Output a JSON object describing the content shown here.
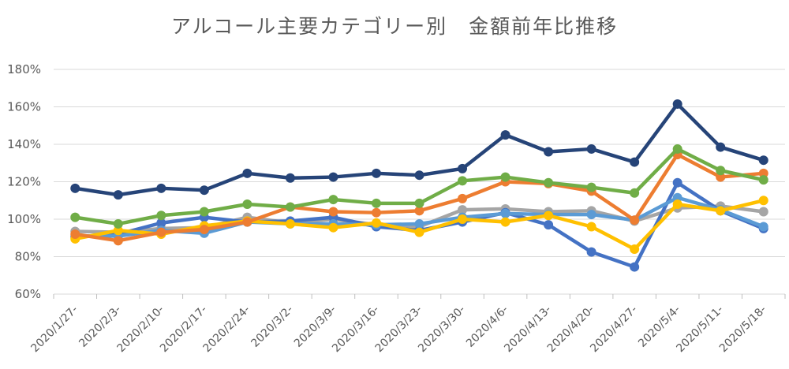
{
  "chart_data": {
    "type": "line",
    "title": "アルコール主要カテゴリー別　金額前年比推移",
    "xlabel": "",
    "ylabel": "",
    "ylim": [
      60,
      180
    ],
    "yticks": [
      60,
      80,
      100,
      120,
      140,
      160,
      180
    ],
    "ytick_labels": [
      "60%",
      "80%",
      "100%",
      "120%",
      "140%",
      "160%",
      "180%"
    ],
    "categories": [
      "2020/1/27-",
      "2020/2/3-",
      "2020/2/10-",
      "2020/2/17-",
      "2020/2/24-",
      "2020/3/2-",
      "2020/3/9-",
      "2020/3/16-",
      "2020/3/23-",
      "2020/3/30-",
      "2020/4/6-",
      "2020/4/13-",
      "2020/4/20-",
      "2020/4/27-",
      "2020/5/4-",
      "2020/5/11-",
      "2020/5/18-"
    ],
    "grid": true,
    "legend": "none",
    "series": [
      {
        "name": "series-gray",
        "color": "#a5a5a5",
        "values": [
          93.5,
          93,
          95,
          95.5,
          101,
          98,
          100,
          97,
          96,
          105,
          105.5,
          104,
          104.5,
          99,
          106,
          107,
          104
        ]
      },
      {
        "name": "series-blue",
        "color": "#4472c4",
        "values": [
          90.5,
          92,
          98,
          101,
          98.5,
          99,
          101,
          96,
          94,
          98.5,
          103.5,
          97,
          82.5,
          74.5,
          119.5,
          104.5,
          95
        ]
      },
      {
        "name": "series-lightblue",
        "color": "#5b9bd5",
        "values": [
          91,
          91,
          94,
          92.5,
          98.5,
          97.5,
          97.5,
          97,
          97.5,
          101,
          103,
          102.5,
          102.5,
          99.5,
          111.5,
          105,
          96
        ]
      },
      {
        "name": "series-yellow",
        "color": "#ffc000",
        "values": [
          89.5,
          94,
          92,
          96.5,
          99,
          97.5,
          95.5,
          98,
          93,
          100,
          98.5,
          102,
          96,
          84,
          108,
          104.5,
          110
        ]
      },
      {
        "name": "series-orange",
        "color": "#ed7d31",
        "values": [
          92,
          88.5,
          93,
          94.5,
          98.5,
          106.5,
          104,
          103.5,
          104.5,
          111,
          120,
          119,
          115,
          99.5,
          134.5,
          122.5,
          124.5
        ]
      },
      {
        "name": "series-green",
        "color": "#70ad47",
        "values": [
          101,
          97.5,
          102,
          104,
          108,
          106.5,
          110.5,
          108.5,
          108.5,
          120.5,
          122.5,
          119.5,
          117,
          114,
          137.5,
          126,
          121
        ]
      },
      {
        "name": "series-navy",
        "color": "#264478",
        "values": [
          116.5,
          113,
          116.5,
          115.5,
          124.5,
          122,
          122.5,
          124.5,
          123.5,
          127,
          145,
          136,
          137.5,
          130.5,
          161.5,
          138.5,
          131.5
        ]
      }
    ]
  }
}
